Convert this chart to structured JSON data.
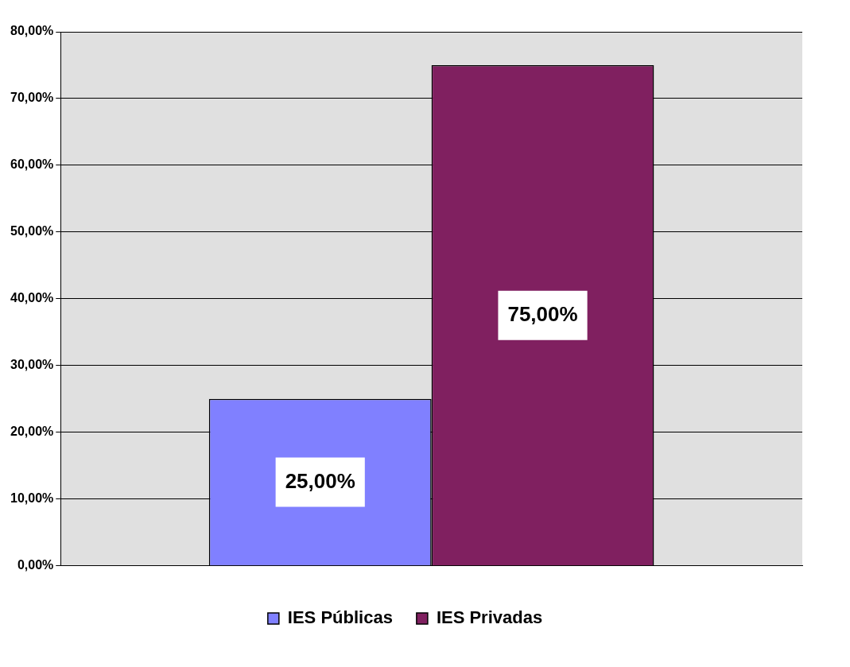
{
  "chart_data": {
    "type": "bar",
    "categories": [
      null
    ],
    "series": [
      {
        "name": "IES Públicas",
        "color": "#8080ff",
        "values": [
          25
        ],
        "value_labels": [
          "25,00%"
        ]
      },
      {
        "name": "IES Privadas",
        "color": "#802060",
        "values": [
          75
        ],
        "value_labels": [
          "75,00%"
        ]
      }
    ],
    "ylim": [
      0,
      80
    ],
    "yticks": [
      {
        "value": 0,
        "label": "0,00%"
      },
      {
        "value": 10,
        "label": "10,00%"
      },
      {
        "value": 20,
        "label": "20,00%"
      },
      {
        "value": 30,
        "label": "30,00%"
      },
      {
        "value": 40,
        "label": "40,00%"
      },
      {
        "value": 50,
        "label": "50,00%"
      },
      {
        "value": 60,
        "label": "60,00%"
      },
      {
        "value": 70,
        "label": "70,00%"
      },
      {
        "value": 80,
        "label": "80,00%"
      }
    ],
    "grid": "y",
    "legend": "bottom"
  }
}
